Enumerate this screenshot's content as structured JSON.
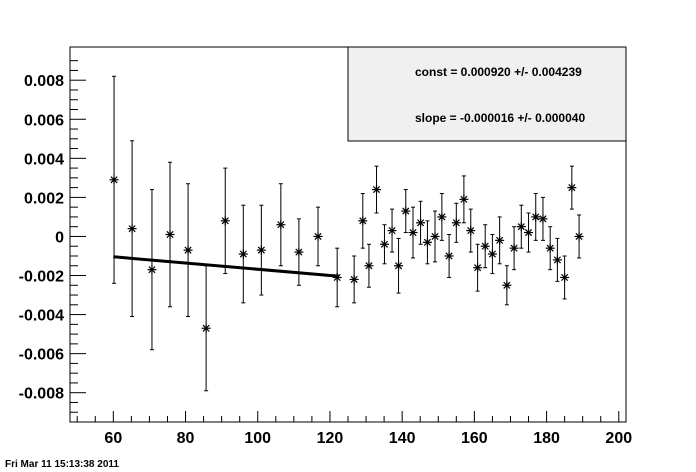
{
  "timestamp": "Fri Mar 11 15:13:38 2011",
  "stats": {
    "const_line": "const = 0.000920 +/- 0.004239",
    "slope_line": "slope = -0.000016 +/- 0.000040"
  },
  "chart_data": {
    "type": "scatter",
    "title": "",
    "xlabel": "",
    "ylabel": "",
    "xlim": [
      48,
      202
    ],
    "ylim": [
      -0.0095,
      0.0097
    ],
    "x_ticks": [
      60,
      80,
      100,
      120,
      140,
      160,
      180,
      200
    ],
    "x_tick_labels": [
      "60",
      "80",
      "100",
      "120",
      "140",
      "160",
      "180",
      "200"
    ],
    "y_ticks": [
      -0.008,
      -0.006,
      -0.004,
      -0.002,
      0,
      0.002,
      0.004,
      0.006,
      0.008
    ],
    "y_tick_labels": [
      "-0.008",
      "-0.006",
      "-0.004",
      "-0.002",
      "0",
      "0.002",
      "0.004",
      "0.006",
      "0.008"
    ],
    "grid": false,
    "legend": "none",
    "marker": "asterisk",
    "color": "#000000",
    "points": [
      {
        "x": 60.2,
        "y": 0.0029,
        "err": 0.0053
      },
      {
        "x": 65.2,
        "y": 0.0004,
        "err": 0.0045
      },
      {
        "x": 70.7,
        "y": -0.0017,
        "err": 0.0041
      },
      {
        "x": 75.7,
        "y": 0.0001,
        "err": 0.0037
      },
      {
        "x": 80.7,
        "y": -0.0007,
        "err": 0.0034
      },
      {
        "x": 85.7,
        "y": -0.0047,
        "err": 0.0032
      },
      {
        "x": 91.0,
        "y": 0.0008,
        "err": 0.0027
      },
      {
        "x": 96.0,
        "y": -0.0009,
        "err": 0.0025
      },
      {
        "x": 101.0,
        "y": -0.0007,
        "err": 0.0023
      },
      {
        "x": 106.4,
        "y": 0.0006,
        "err": 0.0021
      },
      {
        "x": 111.4,
        "y": -0.0008,
        "err": 0.0017
      },
      {
        "x": 116.7,
        "y": 0.0,
        "err": 0.0015
      },
      {
        "x": 122.0,
        "y": -0.0021,
        "err": 0.0015
      },
      {
        "x": 126.7,
        "y": -0.0022,
        "err": 0.0012
      },
      {
        "x": 129.1,
        "y": 0.0008,
        "err": 0.0014
      },
      {
        "x": 130.8,
        "y": -0.0015,
        "err": 0.0011
      },
      {
        "x": 132.9,
        "y": 0.0024,
        "err": 0.0012
      },
      {
        "x": 135.1,
        "y": -0.0004,
        "err": 0.001
      },
      {
        "x": 137.2,
        "y": 0.0003,
        "err": 0.0011
      },
      {
        "x": 139.0,
        "y": -0.0015,
        "err": 0.0014
      },
      {
        "x": 141.0,
        "y": 0.0013,
        "err": 0.0011
      },
      {
        "x": 143.0,
        "y": 0.0002,
        "err": 0.0013
      },
      {
        "x": 145.1,
        "y": 0.0007,
        "err": 0.0011
      },
      {
        "x": 147.0,
        "y": -0.0003,
        "err": 0.0011
      },
      {
        "x": 149.1,
        "y": 0.0,
        "err": 0.0013
      },
      {
        "x": 151.0,
        "y": 0.001,
        "err": 0.0012
      },
      {
        "x": 153.0,
        "y": -0.001,
        "err": 0.0011
      },
      {
        "x": 155.0,
        "y": 0.0007,
        "err": 0.001
      },
      {
        "x": 157.1,
        "y": 0.0019,
        "err": 0.0012
      },
      {
        "x": 159.0,
        "y": 0.0003,
        "err": 0.0011
      },
      {
        "x": 160.9,
        "y": -0.0016,
        "err": 0.0012
      },
      {
        "x": 163.0,
        "y": -0.0005,
        "err": 0.0011
      },
      {
        "x": 165.0,
        "y": -0.0009,
        "err": 0.001
      },
      {
        "x": 167.0,
        "y": -0.0002,
        "err": 0.0012
      },
      {
        "x": 169.0,
        "y": -0.0025,
        "err": 0.001
      },
      {
        "x": 171.0,
        "y": -0.0006,
        "err": 0.0011
      },
      {
        "x": 173.0,
        "y": 0.0005,
        "err": 0.0011
      },
      {
        "x": 175.0,
        "y": 0.0002,
        "err": 0.001
      },
      {
        "x": 177.0,
        "y": 0.001,
        "err": 0.0012
      },
      {
        "x": 179.0,
        "y": 0.0009,
        "err": 0.0011
      },
      {
        "x": 181.0,
        "y": -0.0006,
        "err": 0.0011
      },
      {
        "x": 183.0,
        "y": -0.0012,
        "err": 0.0011
      },
      {
        "x": 185.0,
        "y": -0.0021,
        "err": 0.0011
      },
      {
        "x": 187.0,
        "y": 0.0025,
        "err": 0.0011
      },
      {
        "x": 189.0,
        "y": 0.0,
        "err": 0.0011
      }
    ],
    "fit": {
      "x_start": 60,
      "x_end": 122.5,
      "const": 0.00092,
      "slope": -1.6e-05
    }
  }
}
